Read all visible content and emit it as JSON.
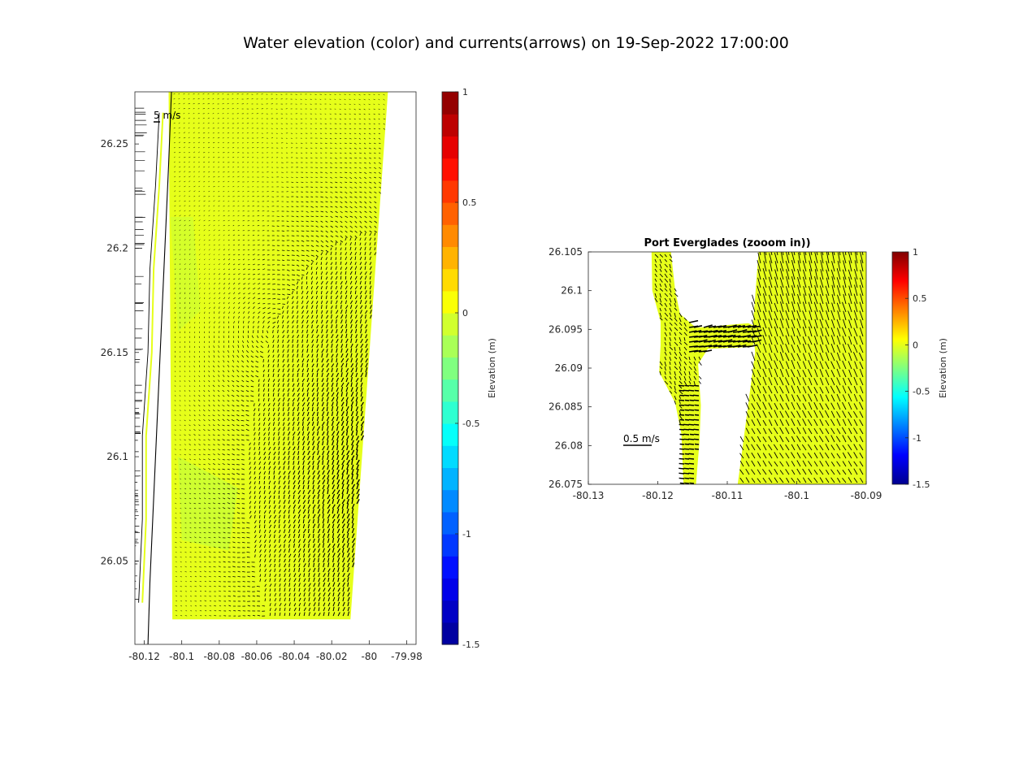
{
  "figure": {
    "title": "Water elevation (color) and currents(arrows) on 19-Sep-2022 17:00:00"
  },
  "colormap": {
    "name": "jet",
    "stops": [
      "#00008f",
      "#0000ff",
      "#0080ff",
      "#00ffff",
      "#80ff80",
      "#ffff00",
      "#ff8000",
      "#ff0000",
      "#800000"
    ],
    "land_color": "#ffffff",
    "arrow_color": "#000000",
    "coastline_color": "#000000"
  },
  "chart_data": [
    {
      "type": "heatmap",
      "name": "full-domain",
      "title": "",
      "xlabel": "",
      "ylabel": "",
      "xlim": [
        -80.125,
        -79.975
      ],
      "ylim": [
        26.01,
        26.275
      ],
      "xticks": [
        -80.12,
        -80.1,
        -80.08,
        -80.06,
        -80.04,
        -80.02,
        -80,
        -79.98
      ],
      "xtick_labels": [
        "-80.12",
        "-80.1",
        "-80.08",
        "-80.06",
        "-80.04",
        "-80.02",
        "-80",
        "-79.98"
      ],
      "yticks": [
        26.05,
        26.1,
        26.15,
        26.2,
        26.25
      ],
      "ytick_labels": [
        "26.05",
        "26.1",
        "26.15",
        "26.2",
        "26.25"
      ],
      "domain_polygon": [
        [
          -80.107,
          26.275
        ],
        [
          -79.99,
          26.275
        ],
        [
          -80.01,
          26.022
        ],
        [
          -80.105,
          26.022
        ]
      ],
      "elevation_m_approx": 0.0,
      "elevation_range_m": [
        -0.1,
        0.05
      ],
      "scale_arrow": {
        "label": "5 m/s",
        "length_ms": 5
      },
      "colorbar": {
        "label": "Elevation (m)",
        "ticks": [
          1,
          0.5,
          0,
          -0.5,
          -1,
          -1.5
        ],
        "tick_labels": [
          "1",
          "0.5",
          "0",
          "-0.5",
          "-1",
          "-1.5"
        ],
        "range": [
          -1.5,
          1
        ],
        "levels": 25
      }
    },
    {
      "type": "heatmap",
      "name": "port-everglades-zoom",
      "title": "Port Everglades (zooom in))",
      "xlabel": "",
      "ylabel": "",
      "xlim": [
        -80.13,
        -80.09
      ],
      "ylim": [
        26.075,
        26.105
      ],
      "xticks": [
        -80.13,
        -80.12,
        -80.11,
        -80.1,
        -80.09
      ],
      "xtick_labels": [
        "-80.13",
        "-80.12",
        "-80.11",
        "-80.1",
        "-80.09"
      ],
      "yticks": [
        26.075,
        26.08,
        26.085,
        26.09,
        26.095,
        26.1,
        26.105
      ],
      "ytick_labels": [
        "26.075",
        "26.08",
        "26.085",
        "26.09",
        "26.095",
        "26.1",
        "26.105"
      ],
      "elevation_m_approx": 0.0,
      "scale_arrow": {
        "label": "0.5 m/s",
        "length_ms": 0.5
      },
      "colorbar": {
        "label": "Elevation (m)",
        "ticks": [
          1,
          0.5,
          0,
          -0.5,
          -1,
          -1.5
        ],
        "tick_labels": [
          "1",
          "0.5",
          "0",
          "-0.5",
          "-1",
          "-1.5"
        ],
        "range": [
          -1.5,
          1
        ],
        "levels": 100
      }
    }
  ]
}
